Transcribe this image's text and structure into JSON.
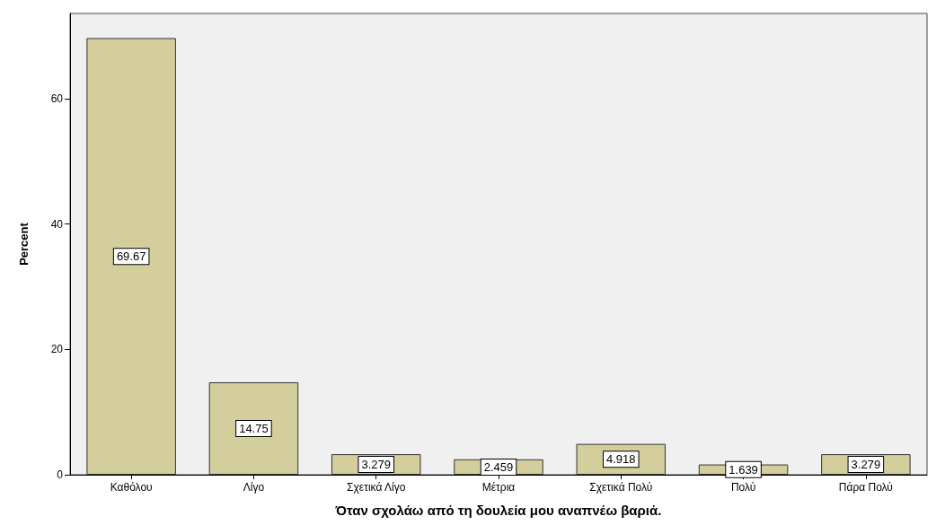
{
  "chart_data": {
    "type": "bar",
    "xlabel": "Όταν σχολάω από τη δουλεία μου αναπνέω βαριά.",
    "ylabel": "Percent",
    "categories": [
      "Καθόλου",
      "Λίγο",
      "Σχετικά Λίγο",
      "Μέτρια",
      "Σχετικά Πολύ",
      "Πολύ",
      "Πάρα Πολύ"
    ],
    "values": [
      69.67,
      14.75,
      3.279,
      2.459,
      4.918,
      1.639,
      3.279
    ],
    "color": "#d3ce9b",
    "ylim": [
      0,
      73.6
    ],
    "yticks": [
      0,
      20,
      40,
      60
    ],
    "grid": false,
    "data_labels": true
  }
}
